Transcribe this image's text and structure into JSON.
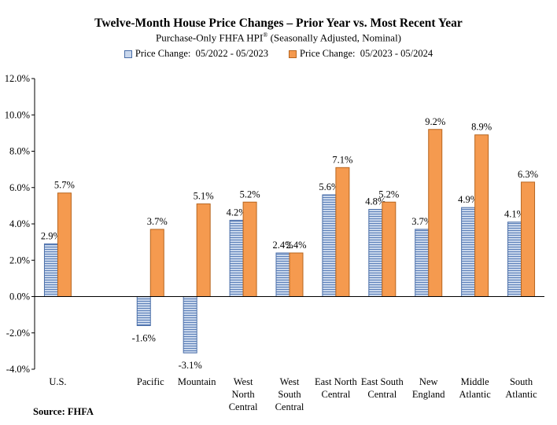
{
  "title_main": "Twelve-Month House Price Changes – Prior Year vs. Most Recent Year",
  "subtitle_text": "Purchase-Only FHFA HPI",
  "subtitle_mark": "®",
  "subtitle_suffix": " (Seasonally Adjusted, Nominal)",
  "source_text": "Source: FHFA",
  "colors": {
    "prior": "#c9d7ec",
    "prior_stripe": "#5b7fb8",
    "prior_border": "#4a6ea8",
    "recent": "#f59a4f",
    "recent_border": "#b7651f"
  },
  "chart_data": {
    "type": "bar",
    "title": "Twelve-Month House Price Changes – Prior Year vs. Most Recent Year",
    "subtitle": "Purchase-Only FHFA HPI® (Seasonally Adjusted, Nominal)",
    "xlabel": "",
    "ylabel": "",
    "ylim": [
      -4,
      12
    ],
    "yticks": [
      -4,
      -2,
      0,
      2,
      4,
      6,
      8,
      10,
      12
    ],
    "ytick_labels": [
      "-4.0%",
      "-2.0%",
      "0.0%",
      "2.0%",
      "4.0%",
      "6.0%",
      "8.0%",
      "10.0%",
      "12.0%"
    ],
    "legend_position": "top",
    "grid": false,
    "categories": [
      "U.S.",
      "",
      "Pacific",
      "Mountain",
      "West North Central",
      "West South Central",
      "East North Central",
      "East South Central",
      "New England",
      "Middle Atlantic",
      "South Atlantic"
    ],
    "category_labels": [
      [
        "U.S."
      ],
      [],
      [
        "Pacific"
      ],
      [
        "Mountain"
      ],
      [
        "West",
        "North",
        "Central"
      ],
      [
        "West",
        "South",
        "Central"
      ],
      [
        "East North",
        "Central"
      ],
      [
        "East South",
        "Central"
      ],
      [
        "New",
        "England"
      ],
      [
        "Middle",
        "Atlantic"
      ],
      [
        "South",
        "Atlantic"
      ]
    ],
    "series": [
      {
        "name": "Price Change:  05/2022 - 05/2023",
        "values": [
          2.9,
          null,
          -1.6,
          -3.1,
          4.2,
          2.4,
          5.6,
          4.8,
          3.7,
          4.9,
          4.1
        ],
        "labels": [
          "2.9%",
          "",
          "-1.6%",
          "-3.1%",
          "4.2%",
          "2.4%",
          "5.6%",
          "4.8%",
          "3.7%",
          "4.9%",
          "4.1%"
        ]
      },
      {
        "name": "Price Change:  05/2023 - 05/2024",
        "values": [
          5.7,
          null,
          3.7,
          5.1,
          5.2,
          2.4,
          7.1,
          5.2,
          9.2,
          8.9,
          6.3
        ],
        "labels": [
          "5.7%",
          "",
          "3.7%",
          "5.1%",
          "5.2%",
          "2.4%",
          "7.1%",
          "5.2%",
          "9.2%",
          "8.9%",
          "6.3%"
        ]
      }
    ]
  }
}
